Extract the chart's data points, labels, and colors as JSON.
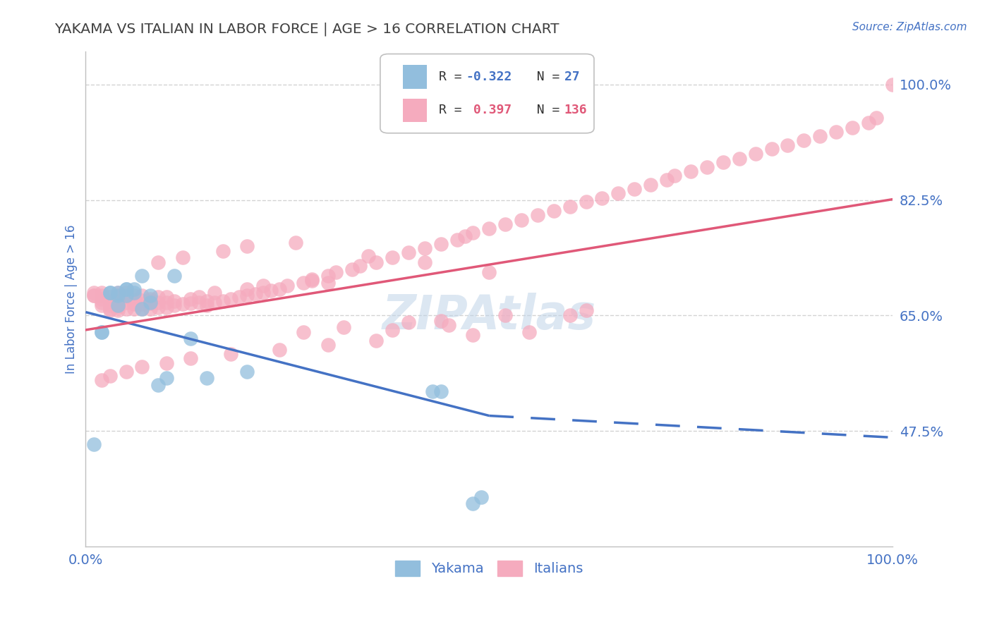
{
  "title": "YAKAMA VS ITALIAN IN LABOR FORCE | AGE > 16 CORRELATION CHART",
  "source_text": "Source: ZipAtlas.com",
  "ylabel": "In Labor Force | Age > 16",
  "watermark": "ZIPAtlas",
  "xlim": [
    0.0,
    1.0
  ],
  "ylim": [
    0.3,
    1.05
  ],
  "yticks": [
    0.475,
    0.65,
    0.825,
    1.0
  ],
  "ytick_labels": [
    "47.5%",
    "65.0%",
    "82.5%",
    "100.0%"
  ],
  "xtick_labels": [
    "0.0%",
    "100.0%"
  ],
  "legend_R_yakama": "-0.322",
  "legend_N_yakama": "27",
  "legend_R_italians": "0.397",
  "legend_N_italians": "136",
  "blue_color": "#92bedd",
  "pink_color": "#f5abbe",
  "trend_blue_color": "#4472c4",
  "trend_pink_color": "#e05878",
  "title_color": "#404040",
  "label_color": "#4472c4",
  "tick_label_color": "#4472c4",
  "background_color": "#ffffff",
  "grid_color": "#c8c8c8",
  "legend_text_dark": "#333333",
  "legend_text_blue": "#4472c4",
  "blue_trend_start_y": 0.655,
  "blue_trend_end_y": 0.498,
  "blue_trend_solid_end_x": 0.5,
  "blue_trend_dashed_end_y": 0.465,
  "pink_trend_start_y": 0.628,
  "pink_trend_end_y": 0.826,
  "yakama_x": [
    0.01,
    0.02,
    0.02,
    0.03,
    0.03,
    0.04,
    0.04,
    0.04,
    0.05,
    0.05,
    0.05,
    0.06,
    0.06,
    0.07,
    0.07,
    0.08,
    0.08,
    0.09,
    0.1,
    0.11,
    0.13,
    0.15,
    0.2,
    0.43,
    0.44,
    0.48,
    0.49
  ],
  "yakama_y": [
    0.455,
    0.625,
    0.625,
    0.685,
    0.685,
    0.665,
    0.68,
    0.685,
    0.68,
    0.69,
    0.69,
    0.685,
    0.69,
    0.71,
    0.66,
    0.68,
    0.67,
    0.545,
    0.555,
    0.71,
    0.615,
    0.555,
    0.565,
    0.535,
    0.535,
    0.365,
    0.375
  ],
  "italians_x": [
    0.01,
    0.01,
    0.01,
    0.02,
    0.02,
    0.02,
    0.02,
    0.02,
    0.03,
    0.03,
    0.03,
    0.03,
    0.04,
    0.04,
    0.04,
    0.04,
    0.04,
    0.05,
    0.05,
    0.05,
    0.05,
    0.06,
    0.06,
    0.06,
    0.06,
    0.07,
    0.07,
    0.07,
    0.07,
    0.08,
    0.08,
    0.08,
    0.09,
    0.09,
    0.09,
    0.1,
    0.1,
    0.1,
    0.11,
    0.11,
    0.12,
    0.13,
    0.13,
    0.14,
    0.15,
    0.15,
    0.16,
    0.17,
    0.18,
    0.19,
    0.2,
    0.21,
    0.22,
    0.23,
    0.24,
    0.25,
    0.27,
    0.28,
    0.3,
    0.31,
    0.33,
    0.34,
    0.36,
    0.38,
    0.4,
    0.42,
    0.44,
    0.46,
    0.47,
    0.48,
    0.5,
    0.52,
    0.54,
    0.56,
    0.58,
    0.6,
    0.62,
    0.64,
    0.66,
    0.68,
    0.7,
    0.72,
    0.73,
    0.75,
    0.77,
    0.79,
    0.81,
    0.83,
    0.85,
    0.87,
    0.89,
    0.91,
    0.93,
    0.95,
    0.97,
    0.98,
    1.0,
    0.26,
    0.35,
    0.42,
    0.5,
    0.28,
    0.3,
    0.22,
    0.2,
    0.16,
    0.14,
    0.08,
    0.06,
    0.04,
    0.03,
    0.55,
    0.48,
    0.36,
    0.3,
    0.24,
    0.18,
    0.13,
    0.1,
    0.07,
    0.05,
    0.03,
    0.02,
    0.6,
    0.4,
    0.32,
    0.27,
    0.45,
    0.38,
    0.2,
    0.17,
    0.12,
    0.09,
    0.62,
    0.52,
    0.44
  ],
  "italians_y": [
    0.68,
    0.68,
    0.685,
    0.665,
    0.67,
    0.675,
    0.68,
    0.685,
    0.66,
    0.665,
    0.672,
    0.678,
    0.658,
    0.665,
    0.672,
    0.68,
    0.685,
    0.66,
    0.67,
    0.678,
    0.685,
    0.66,
    0.667,
    0.673,
    0.68,
    0.66,
    0.667,
    0.673,
    0.68,
    0.66,
    0.668,
    0.675,
    0.662,
    0.67,
    0.678,
    0.662,
    0.67,
    0.678,
    0.665,
    0.672,
    0.667,
    0.668,
    0.675,
    0.67,
    0.665,
    0.672,
    0.67,
    0.672,
    0.675,
    0.678,
    0.68,
    0.682,
    0.685,
    0.688,
    0.69,
    0.695,
    0.7,
    0.703,
    0.71,
    0.715,
    0.72,
    0.725,
    0.73,
    0.738,
    0.745,
    0.752,
    0.758,
    0.765,
    0.77,
    0.775,
    0.782,
    0.788,
    0.795,
    0.802,
    0.808,
    0.815,
    0.822,
    0.828,
    0.835,
    0.842,
    0.848,
    0.855,
    0.862,
    0.868,
    0.875,
    0.882,
    0.888,
    0.895,
    0.902,
    0.908,
    0.915,
    0.922,
    0.928,
    0.935,
    0.942,
    0.95,
    1.0,
    0.76,
    0.74,
    0.73,
    0.715,
    0.705,
    0.7,
    0.695,
    0.69,
    0.685,
    0.678,
    0.672,
    0.668,
    0.662,
    0.658,
    0.625,
    0.62,
    0.612,
    0.605,
    0.598,
    0.592,
    0.585,
    0.578,
    0.572,
    0.565,
    0.558,
    0.552,
    0.65,
    0.64,
    0.632,
    0.625,
    0.635,
    0.628,
    0.755,
    0.748,
    0.738,
    0.73,
    0.658,
    0.65,
    0.642
  ]
}
